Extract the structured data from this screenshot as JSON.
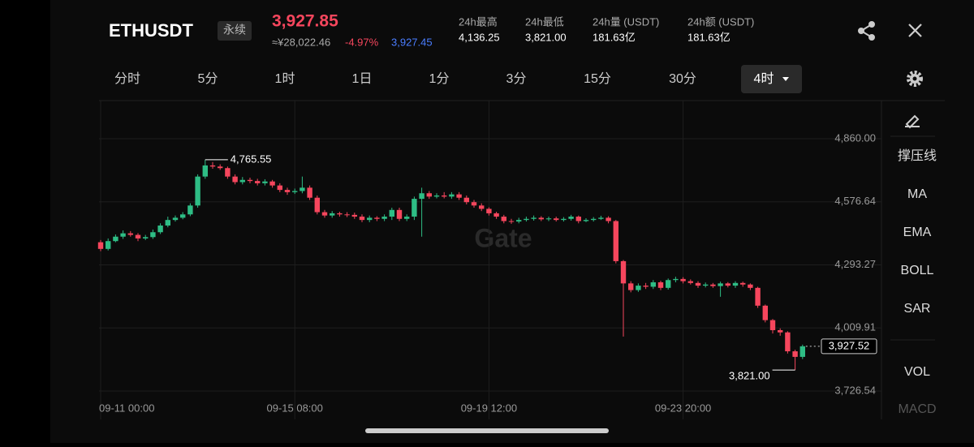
{
  "header": {
    "symbol": "ETHUSDT",
    "contract": "永续",
    "price": "3,927.85",
    "price_cny": "≈¥28,022.46",
    "change": "-4.97%",
    "mark_price": "3,927.45",
    "stats": [
      {
        "label": "24h最高",
        "value": "4,136.25"
      },
      {
        "label": "24h最低",
        "value": "3,821.00"
      },
      {
        "label": "24h量 (USDT)",
        "value": "181.63亿"
      },
      {
        "label": "24h额 (USDT)",
        "value": "181.63亿"
      }
    ]
  },
  "intervals": [
    "分时",
    "5分",
    "1时",
    "1日",
    "1分",
    "3分",
    "15分",
    "30分",
    "4时"
  ],
  "indicators": [
    "撑压线",
    "MA",
    "EMA",
    "BOLL",
    "SAR",
    "VOL",
    "MACD"
  ],
  "chart_data": {
    "type": "candlestick",
    "categories": [
      "09-11 00:00",
      null,
      null,
      null,
      null,
      null,
      null,
      null,
      null,
      null,
      null,
      null,
      null,
      null,
      null,
      null,
      null,
      null,
      null,
      null,
      null,
      null,
      null,
      null,
      null,
      null,
      "09-15 08:00",
      null,
      null,
      null,
      null,
      null,
      null,
      null,
      null,
      null,
      null,
      null,
      null,
      null,
      null,
      null,
      null,
      null,
      null,
      null,
      null,
      null,
      null,
      null,
      null,
      null,
      "09-19 12:00",
      null,
      null,
      null,
      null,
      null,
      null,
      null,
      null,
      null,
      null,
      null,
      null,
      null,
      null,
      null,
      null,
      null,
      null,
      null,
      null,
      null,
      null,
      null,
      null,
      null,
      "09-23 20:00",
      null,
      null,
      null,
      null,
      null,
      null,
      null,
      null,
      null,
      null,
      null,
      null,
      null,
      null,
      null,
      null
    ],
    "open": [
      4395,
      4365,
      4400,
      4420,
      4435,
      4428,
      4412,
      4418,
      4440,
      4470,
      4495,
      4505,
      4520,
      4560,
      4690,
      4740,
      4735,
      4728,
      4690,
      4665,
      4675,
      4670,
      4660,
      4668,
      4650,
      4630,
      4620,
      4625,
      4640,
      4595,
      4530,
      4515,
      4525,
      4520,
      4518,
      4510,
      4495,
      4505,
      4500,
      4510,
      4540,
      4500,
      4510,
      4590,
      4615,
      4600,
      4605,
      4600,
      4610,
      4595,
      4575,
      4560,
      4545,
      4525,
      4510,
      4490,
      4488,
      4495,
      4500,
      4505,
      4498,
      4502,
      4495,
      4500,
      4510,
      4490,
      4495,
      4500,
      4505,
      4490,
      4310,
      4210,
      4180,
      4200,
      4195,
      4215,
      4190,
      4225,
      4230,
      4220,
      4212,
      4200,
      4205,
      4198,
      4210,
      4200,
      4212,
      4205,
      4190,
      4110,
      4045,
      4000,
      3990,
      3905,
      3880
    ],
    "high": [
      4405,
      4412,
      4430,
      4448,
      4445,
      4436,
      4428,
      4452,
      4480,
      4510,
      4515,
      4530,
      4570,
      4700,
      4765.55,
      4755,
      4745,
      4735,
      4700,
      4688,
      4685,
      4680,
      4678,
      4675,
      4660,
      4640,
      4636,
      4690,
      4650,
      4605,
      4540,
      4535,
      4532,
      4530,
      4528,
      4520,
      4515,
      4512,
      4520,
      4550,
      4550,
      4520,
      4600,
      4640,
      4625,
      4615,
      4620,
      4620,
      4620,
      4605,
      4585,
      4570,
      4552,
      4532,
      4518,
      4500,
      4505,
      4510,
      4515,
      4512,
      4510,
      4510,
      4508,
      4518,
      4515,
      4503,
      4508,
      4514,
      4512,
      4495,
      4315,
      4220,
      4210,
      4212,
      4225,
      4222,
      4232,
      4240,
      4238,
      4228,
      4220,
      4214,
      4212,
      4218,
      4216,
      4220,
      4218,
      4210,
      4195,
      4115,
      4050,
      4008,
      3995,
      3912,
      3935
    ],
    "low": [
      4355,
      4358,
      4395,
      4410,
      4420,
      4400,
      4405,
      4410,
      4432,
      4462,
      4488,
      4498,
      4512,
      4550,
      4680,
      4725,
      4720,
      4680,
      4655,
      4655,
      4660,
      4650,
      4650,
      4640,
      4620,
      4608,
      4612,
      4615,
      4585,
      4520,
      4505,
      4505,
      4510,
      4508,
      4500,
      4485,
      4485,
      4490,
      4490,
      4495,
      4490,
      4490,
      4495,
      4420,
      4590,
      4592,
      4592,
      4590,
      4585,
      4565,
      4550,
      4535,
      4515,
      4500,
      4480,
      4478,
      4480,
      4488,
      4492,
      4490,
      4490,
      4488,
      4488,
      4492,
      4480,
      4485,
      4488,
      4495,
      4480,
      4300,
      3971,
      4170,
      4172,
      4185,
      4185,
      4180,
      4182,
      4215,
      4210,
      4205,
      4190,
      4192,
      4190,
      4150,
      4192,
      4190,
      4195,
      4180,
      4100,
      4035,
      3985,
      3975,
      3895,
      3821,
      3870
    ],
    "close": [
      4365,
      4400,
      4420,
      4435,
      4428,
      4412,
      4418,
      4440,
      4470,
      4495,
      4505,
      4520,
      4560,
      4690,
      4740,
      4735,
      4728,
      4690,
      4665,
      4675,
      4670,
      4660,
      4668,
      4650,
      4630,
      4620,
      4625,
      4640,
      4595,
      4530,
      4515,
      4525,
      4520,
      4518,
      4510,
      4495,
      4505,
      4500,
      4510,
      4540,
      4500,
      4510,
      4590,
      4615,
      4600,
      4605,
      4600,
      4610,
      4595,
      4575,
      4560,
      4545,
      4525,
      4510,
      4490,
      4488,
      4495,
      4500,
      4505,
      4498,
      4502,
      4495,
      4500,
      4510,
      4490,
      4495,
      4500,
      4505,
      4490,
      4310,
      4210,
      4180,
      4200,
      4195,
      4215,
      4190,
      4225,
      4230,
      4220,
      4212,
      4200,
      4205,
      4198,
      4210,
      4200,
      4212,
      4205,
      4190,
      4110,
      4045,
      4000,
      3990,
      3905,
      3880,
      3927.52
    ],
    "up_color": "#2ebd85",
    "down_color": "#f6465d",
    "ylim": [
      3690.1,
      5031.3
    ],
    "yticks": [
      {
        "value": 3726.54,
        "label": "3,726.54"
      },
      {
        "value": 4009.91,
        "label": "4,009.91"
      },
      {
        "value": 4293.27,
        "label": "4,293.27"
      },
      {
        "value": 4576.64,
        "label": "4,576.64"
      },
      {
        "value": 4860,
        "label": "4,860.00"
      }
    ],
    "grid": true,
    "max_label": {
      "value": 4765.55,
      "label": "4,765.55"
    },
    "min_label": {
      "value": 3821,
      "label": "3,821.00"
    },
    "last_price": {
      "value": 3927.52,
      "label": "3,927.52"
    },
    "watermark": "Gate"
  }
}
